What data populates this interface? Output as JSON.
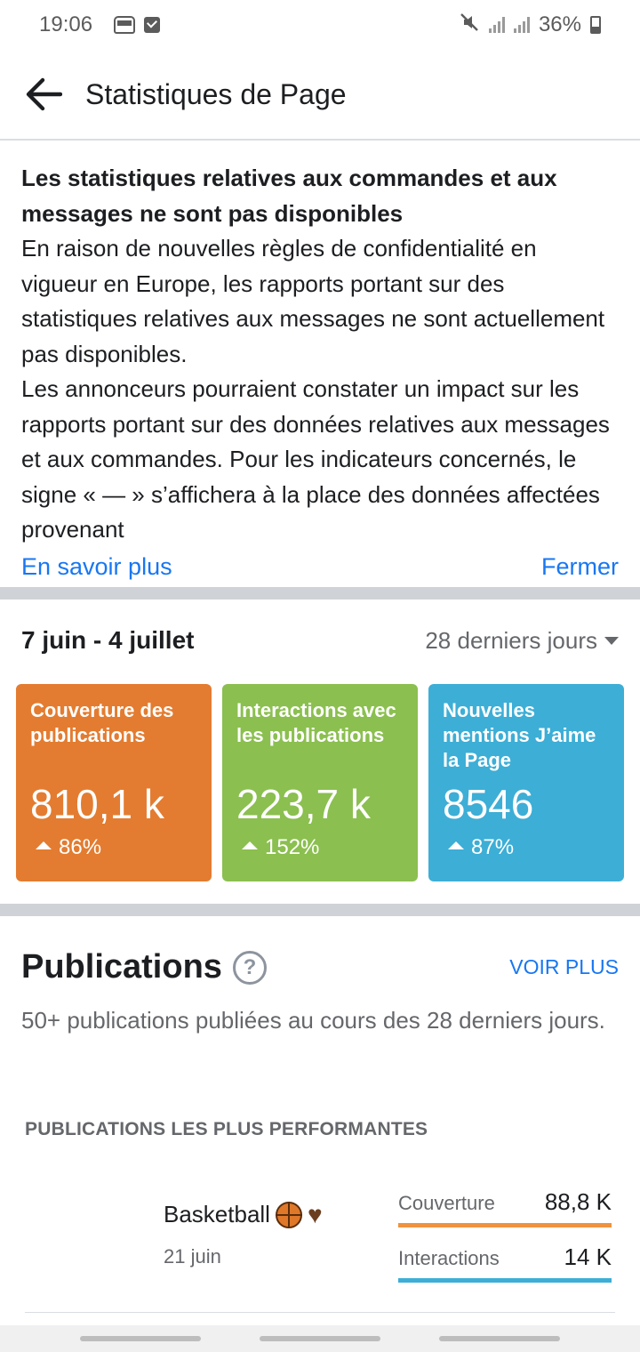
{
  "status_bar": {
    "time": "19:06",
    "battery": "36%",
    "icons": [
      "bus-icon",
      "check-square-icon",
      "mute-icon",
      "signal-icon",
      "battery-icon"
    ]
  },
  "header": {
    "title": "Statistiques de Page",
    "back_icon": "arrow-left-icon"
  },
  "notice": {
    "title": "Les statistiques relatives aux commandes et aux messages ne sont pas disponibles",
    "body": "En raison de nouvelles règles de confidentialité en vigueur en Europe, les rapports portant sur des statistiques relatives aux messages ne sont actuellement pas disponibles.\nLes annonceurs pourraient constater un impact sur les rapports portant sur des données relatives aux messages et aux commandes. Pour les indicateurs concernés, le signe « — » s’affichera à la place des données affectées provenant",
    "learn_more": "En savoir plus",
    "close": "Fermer"
  },
  "range": {
    "dates": "7 juin - 4 juillet",
    "period": "28 derniers jours"
  },
  "cards": [
    {
      "title": "Couverture des publications",
      "value": "810,1 k",
      "trend": "86%",
      "color": "#e37c30"
    },
    {
      "title": "Interactions avec les publications",
      "value": "223,7 k",
      "trend": "152%",
      "color": "#8bbf4f"
    },
    {
      "title": "Nouvelles mentions J’aime la Page",
      "value": "8546",
      "trend": "87%",
      "color": "#3daed6"
    }
  ],
  "publications": {
    "title": "Publications",
    "see_more": "VOIR PLUS",
    "description": "50+ publications publiées au cours des 28 derniers jours.",
    "section_label": "PUBLICATIONS LES PLUS PERFORMANTES",
    "top_post": {
      "name": "Basketball",
      "date": "21 juin",
      "emojis": [
        "basketball-icon",
        "brown-heart-icon"
      ],
      "metrics": [
        {
          "label": "Couverture",
          "value": "88,8 K",
          "color": "#f0923e"
        },
        {
          "label": "Interactions",
          "value": "14 K",
          "color": "#3daed6"
        }
      ]
    }
  }
}
